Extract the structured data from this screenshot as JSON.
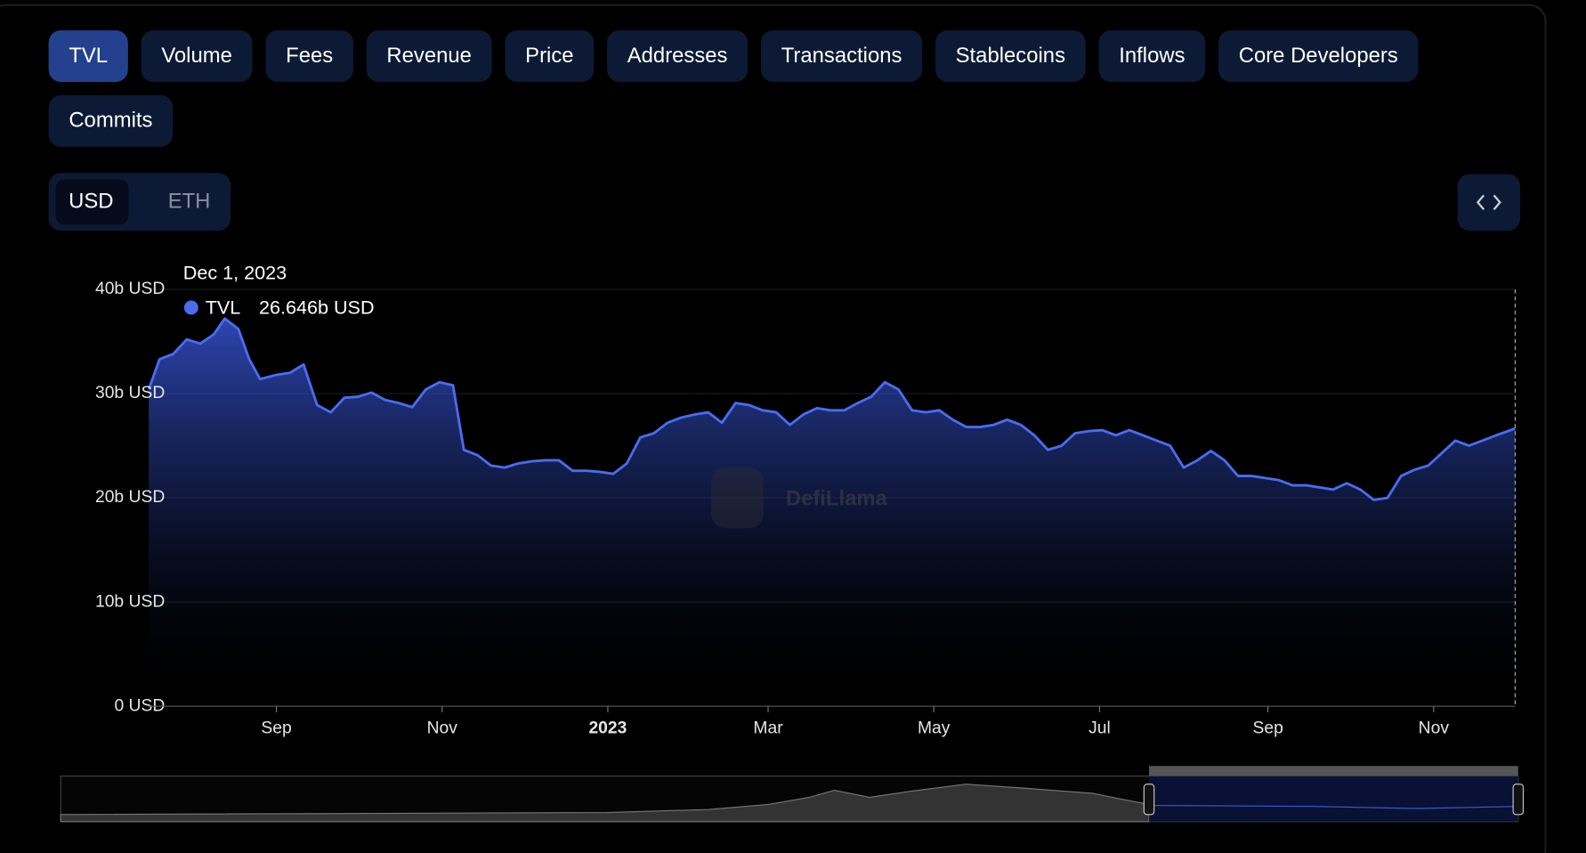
{
  "tabs": [
    "TVL",
    "Volume",
    "Fees",
    "Revenue",
    "Price",
    "Addresses",
    "Transactions",
    "Stablecoins",
    "Inflows",
    "Core Developers",
    "Commits"
  ],
  "currency": [
    "USD",
    "ETH"
  ],
  "chart_data": {
    "type": "area",
    "series": [
      {
        "name": "TVL",
        "color": "#4a6cf0",
        "x": [
          "2022-07-16",
          "2022-07-20",
          "2022-07-25",
          "2022-07-30",
          "2022-08-04",
          "2022-08-09",
          "2022-08-13",
          "2022-08-18",
          "2022-08-22",
          "2022-08-26",
          "2022-09-01",
          "2022-09-06",
          "2022-09-11",
          "2022-09-16",
          "2022-09-21",
          "2022-09-26",
          "2022-10-01",
          "2022-10-06",
          "2022-10-11",
          "2022-10-16",
          "2022-10-21",
          "2022-10-26",
          "2022-10-31",
          "2022-11-05",
          "2022-11-09",
          "2022-11-14",
          "2022-11-19",
          "2022-11-24",
          "2022-11-29",
          "2022-12-04",
          "2022-12-09",
          "2022-12-14",
          "2022-12-19",
          "2022-12-24",
          "2022-12-29",
          "2023-01-03",
          "2023-01-08",
          "2023-01-13",
          "2023-01-18",
          "2023-01-23",
          "2023-01-28",
          "2023-02-02",
          "2023-02-07",
          "2023-02-12",
          "2023-02-17",
          "2023-02-22",
          "2023-02-27",
          "2023-03-04",
          "2023-03-09",
          "2023-03-14",
          "2023-03-19",
          "2023-03-24",
          "2023-03-29",
          "2023-04-03",
          "2023-04-08",
          "2023-04-13",
          "2023-04-18",
          "2023-04-23",
          "2023-04-28",
          "2023-05-03",
          "2023-05-08",
          "2023-05-13",
          "2023-05-18",
          "2023-05-23",
          "2023-05-28",
          "2023-06-02",
          "2023-06-07",
          "2023-06-12",
          "2023-06-17",
          "2023-06-22",
          "2023-06-27",
          "2023-07-02",
          "2023-07-07",
          "2023-07-12",
          "2023-07-17",
          "2023-07-22",
          "2023-07-27",
          "2023-08-01",
          "2023-08-06",
          "2023-08-11",
          "2023-08-16",
          "2023-08-21",
          "2023-08-26",
          "2023-08-31",
          "2023-09-05",
          "2023-09-10",
          "2023-09-15",
          "2023-09-20",
          "2023-09-25",
          "2023-09-30",
          "2023-10-05",
          "2023-10-10",
          "2023-10-15",
          "2023-10-20",
          "2023-10-25",
          "2023-10-30",
          "2023-11-04",
          "2023-11-09",
          "2023-11-14",
          "2023-11-19",
          "2023-11-24",
          "2023-12-01"
        ],
        "values": [
          30.4,
          33.3,
          33.8,
          35.2,
          34.8,
          35.7,
          37.2,
          36.2,
          33.3,
          31.4,
          31.8,
          32.0,
          32.8,
          28.9,
          28.2,
          29.6,
          29.7,
          30.1,
          29.4,
          29.1,
          28.7,
          30.4,
          31.1,
          30.8,
          24.6,
          24.1,
          23.1,
          22.9,
          23.3,
          23.5,
          23.6,
          23.6,
          22.6,
          22.6,
          22.5,
          22.3,
          23.3,
          25.8,
          26.2,
          27.2,
          27.7,
          28.0,
          28.2,
          27.2,
          29.1,
          28.9,
          28.4,
          28.2,
          27.0,
          28.0,
          28.6,
          28.4,
          28.4,
          29.1,
          29.7,
          31.1,
          30.4,
          28.4,
          28.2,
          28.4,
          27.5,
          26.8,
          26.8,
          27.0,
          27.5,
          27.0,
          26.0,
          24.6,
          25.0,
          26.2,
          26.4,
          26.5,
          26.0,
          26.5,
          26.0,
          25.5,
          25.0,
          22.9,
          23.6,
          24.5,
          23.6,
          22.1,
          22.1,
          21.9,
          21.7,
          21.2,
          21.2,
          21.0,
          20.8,
          21.4,
          20.8,
          19.8,
          20.0,
          22.1,
          22.7,
          23.1,
          24.3,
          25.5,
          25.0,
          25.5,
          26.0,
          26.646
        ]
      }
    ],
    "xlim": [
      "2022-07-16",
      "2023-12-01"
    ],
    "xticks": [
      {
        "value": "2022-09-01",
        "label": "Sep"
      },
      {
        "value": "2022-11-01",
        "label": "Nov"
      },
      {
        "value": "2023-01-01",
        "label": "2023"
      },
      {
        "value": "2023-03-01",
        "label": "Mar"
      },
      {
        "value": "2023-05-01",
        "label": "May"
      },
      {
        "value": "2023-07-01",
        "label": "Jul"
      },
      {
        "value": "2023-09-01",
        "label": "Sep"
      },
      {
        "value": "2023-11-01",
        "label": "Nov"
      }
    ],
    "ylim": [
      0,
      40
    ],
    "yticks": [
      {
        "value": 0,
        "label": "0 USD"
      },
      {
        "value": 10,
        "label": "10b USD"
      },
      {
        "value": 20,
        "label": "20b USD"
      },
      {
        "value": 30,
        "label": "30b USD"
      },
      {
        "value": 40,
        "label": "40b USD"
      }
    ],
    "grid": true,
    "tooltip": {
      "title": "Dec 1, 2023",
      "label": "26.646b USD"
    },
    "watermark": "DefiLlama"
  }
}
